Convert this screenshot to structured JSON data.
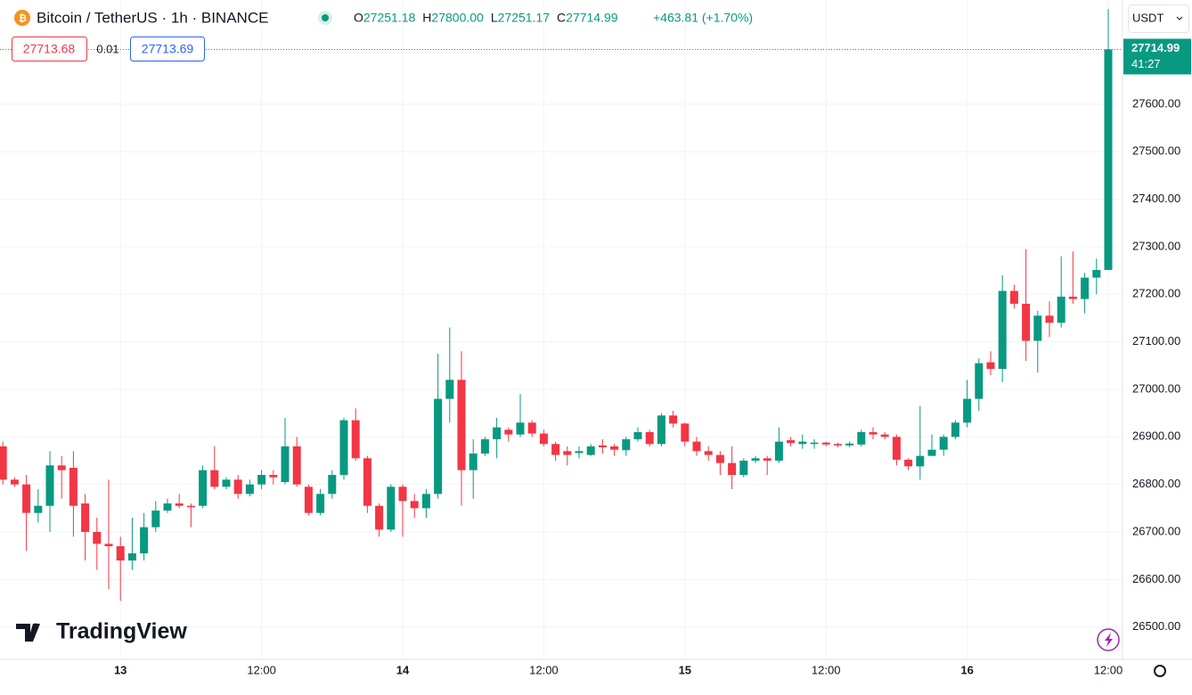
{
  "header": {
    "symbol": "Bitcoin / TetherUS · 1h · BINANCE",
    "ohlc": [
      {
        "key": "O",
        "value": "27251.18"
      },
      {
        "key": "H",
        "value": "27800.00"
      },
      {
        "key": "L",
        "value": "27251.17"
      },
      {
        "key": "C",
        "value": "27714.99"
      }
    ],
    "change": "+463.81 (+1.70%)",
    "bid": "27713.68",
    "spread": "0.01",
    "ask": "27713.69",
    "currency": "USDT",
    "last_price": "27714.99",
    "countdown": "41:27",
    "brand": "TradingView"
  },
  "chart_data": {
    "type": "candlestick",
    "up_color": "#089981",
    "down_color": "#f23645",
    "grid": true,
    "categories": [
      null,
      null,
      null,
      null,
      null,
      null,
      null,
      null,
      null,
      null,
      "13",
      null,
      null,
      null,
      null,
      null,
      null,
      null,
      null,
      null,
      null,
      null,
      "12:00",
      null,
      null,
      null,
      null,
      null,
      null,
      null,
      null,
      null,
      null,
      null,
      "14",
      null,
      null,
      null,
      null,
      null,
      null,
      null,
      null,
      null,
      null,
      null,
      "12:00",
      null,
      null,
      null,
      null,
      null,
      null,
      null,
      null,
      null,
      null,
      null,
      "15",
      null,
      null,
      null,
      null,
      null,
      null,
      null,
      null,
      null,
      null,
      null,
      "12:00",
      null,
      null,
      null,
      null,
      null,
      null,
      null,
      null,
      null,
      null,
      null,
      "16",
      null,
      null,
      null,
      null,
      null,
      null,
      null,
      null,
      null,
      null,
      null,
      "12:00"
    ],
    "open": [
      26880,
      26810,
      26800,
      26740,
      26755,
      26840,
      26835,
      26760,
      26700,
      26675,
      26670,
      26640,
      26655,
      26710,
      26745,
      26760,
      26755,
      26755,
      26830,
      26795,
      26810,
      26780,
      26800,
      26820,
      26805,
      26880,
      26795,
      26740,
      26780,
      26820,
      26935,
      26855,
      26755,
      26705,
      26795,
      26765,
      26750,
      26780,
      26980,
      27020,
      26830,
      26865,
      26895,
      26915,
      26905,
      26930,
      26907,
      26885,
      26870,
      26866,
      26862,
      26882,
      26880,
      26872,
      26895,
      26910,
      26885,
      26945,
      26928,
      26890,
      26870,
      26862,
      26845,
      26820,
      26850,
      26855,
      26850,
      26893,
      26885,
      26885,
      26888,
      26885,
      26882,
      26884,
      26910,
      26905,
      26900,
      26852,
      26838,
      26860,
      26873,
      26900,
      26930,
      26980,
      27057,
      27043,
      27207,
      27180,
      27102,
      27155,
      27140,
      27195,
      27190,
      27235,
      27251.18
    ],
    "high": [
      26890,
      26815,
      26820,
      26790,
      26870,
      26860,
      26870,
      26780,
      26730,
      26810,
      26690,
      26730,
      26740,
      26765,
      26770,
      26780,
      26760,
      26840,
      26880,
      26815,
      26820,
      26810,
      26830,
      26830,
      26940,
      26900,
      26800,
      26790,
      26830,
      26940,
      26960,
      26860,
      26760,
      26800,
      26800,
      26780,
      26790,
      27075,
      27130,
      27080,
      26895,
      26900,
      26940,
      26920,
      26990,
      26935,
      26915,
      26890,
      26880,
      26880,
      26885,
      26895,
      26885,
      26900,
      26920,
      26915,
      26950,
      26955,
      26930,
      26900,
      26880,
      26870,
      26880,
      26855,
      26860,
      26860,
      26920,
      26900,
      26905,
      26895,
      26890,
      26888,
      26890,
      26915,
      26920,
      26910,
      26905,
      26855,
      26965,
      26905,
      26905,
      26935,
      27020,
      27065,
      27080,
      27240,
      27220,
      27295,
      27165,
      27185,
      27280,
      27290,
      27245,
      27275,
      27800
    ],
    "low": [
      26800,
      26795,
      26660,
      26720,
      26700,
      26770,
      26690,
      26640,
      26620,
      26580,
      26555,
      26620,
      26640,
      26700,
      26740,
      26750,
      26710,
      26750,
      26790,
      26790,
      26770,
      26775,
      26790,
      26800,
      26800,
      26795,
      26735,
      26735,
      26770,
      26810,
      26850,
      26740,
      26690,
      26700,
      26690,
      26730,
      26730,
      26770,
      26930,
      26755,
      26770,
      26860,
      26855,
      26890,
      26900,
      26900,
      26880,
      26850,
      26840,
      26855,
      26860,
      26865,
      26860,
      26860,
      26890,
      26880,
      26880,
      26920,
      26880,
      26860,
      26850,
      26820,
      26790,
      26815,
      26845,
      26820,
      26845,
      26880,
      26875,
      26875,
      26880,
      26878,
      26878,
      26880,
      26895,
      26895,
      26840,
      26830,
      26810,
      26860,
      26860,
      26895,
      26920,
      26955,
      27030,
      27015,
      27170,
      27060,
      27035,
      27110,
      27130,
      27180,
      27160,
      27200,
      27251.17
    ],
    "close": [
      26810,
      26800,
      26740,
      26755,
      26840,
      26830,
      26755,
      26700,
      26675,
      26670,
      26640,
      26655,
      26710,
      26745,
      26760,
      26755,
      26752,
      26830,
      26795,
      26810,
      26780,
      26800,
      26820,
      26815,
      26880,
      26800,
      26740,
      26780,
      26820,
      26935,
      26855,
      26755,
      26705,
      26795,
      26765,
      26750,
      26780,
      26980,
      27020,
      26830,
      26865,
      26895,
      26920,
      26905,
      26930,
      26907,
      26885,
      26862,
      26862,
      26870,
      26880,
      26878,
      26873,
      26895,
      26910,
      26885,
      26945,
      26928,
      26890,
      26870,
      26862,
      26845,
      26820,
      26850,
      26855,
      26850,
      26890,
      26887,
      26890,
      26888,
      26884,
      26882,
      26886,
      26910,
      26905,
      26900,
      26852,
      26838,
      26860,
      26873,
      26900,
      26930,
      26980,
      27055,
      27043,
      27207,
      27180,
      27102,
      27155,
      27140,
      27195,
      27190,
      27235,
      27251,
      27714.99
    ],
    "ylim": [
      26432,
      27819
    ],
    "yticks": [
      {
        "value": 26500,
        "label": "26500.00"
      },
      {
        "value": 26600,
        "label": "26600.00"
      },
      {
        "value": 26700,
        "label": "26700.00"
      },
      {
        "value": 26800,
        "label": "26800.00"
      },
      {
        "value": 26900,
        "label": "26900.00"
      },
      {
        "value": 27000,
        "label": "27000.00"
      },
      {
        "value": 27100,
        "label": "27100.00"
      },
      {
        "value": 27200,
        "label": "27200.00"
      },
      {
        "value": 27300,
        "label": "27300.00"
      },
      {
        "value": 27400,
        "label": "27400.00"
      },
      {
        "value": 27500,
        "label": "27500.00"
      },
      {
        "value": 27600,
        "label": "27600.00"
      }
    ]
  }
}
